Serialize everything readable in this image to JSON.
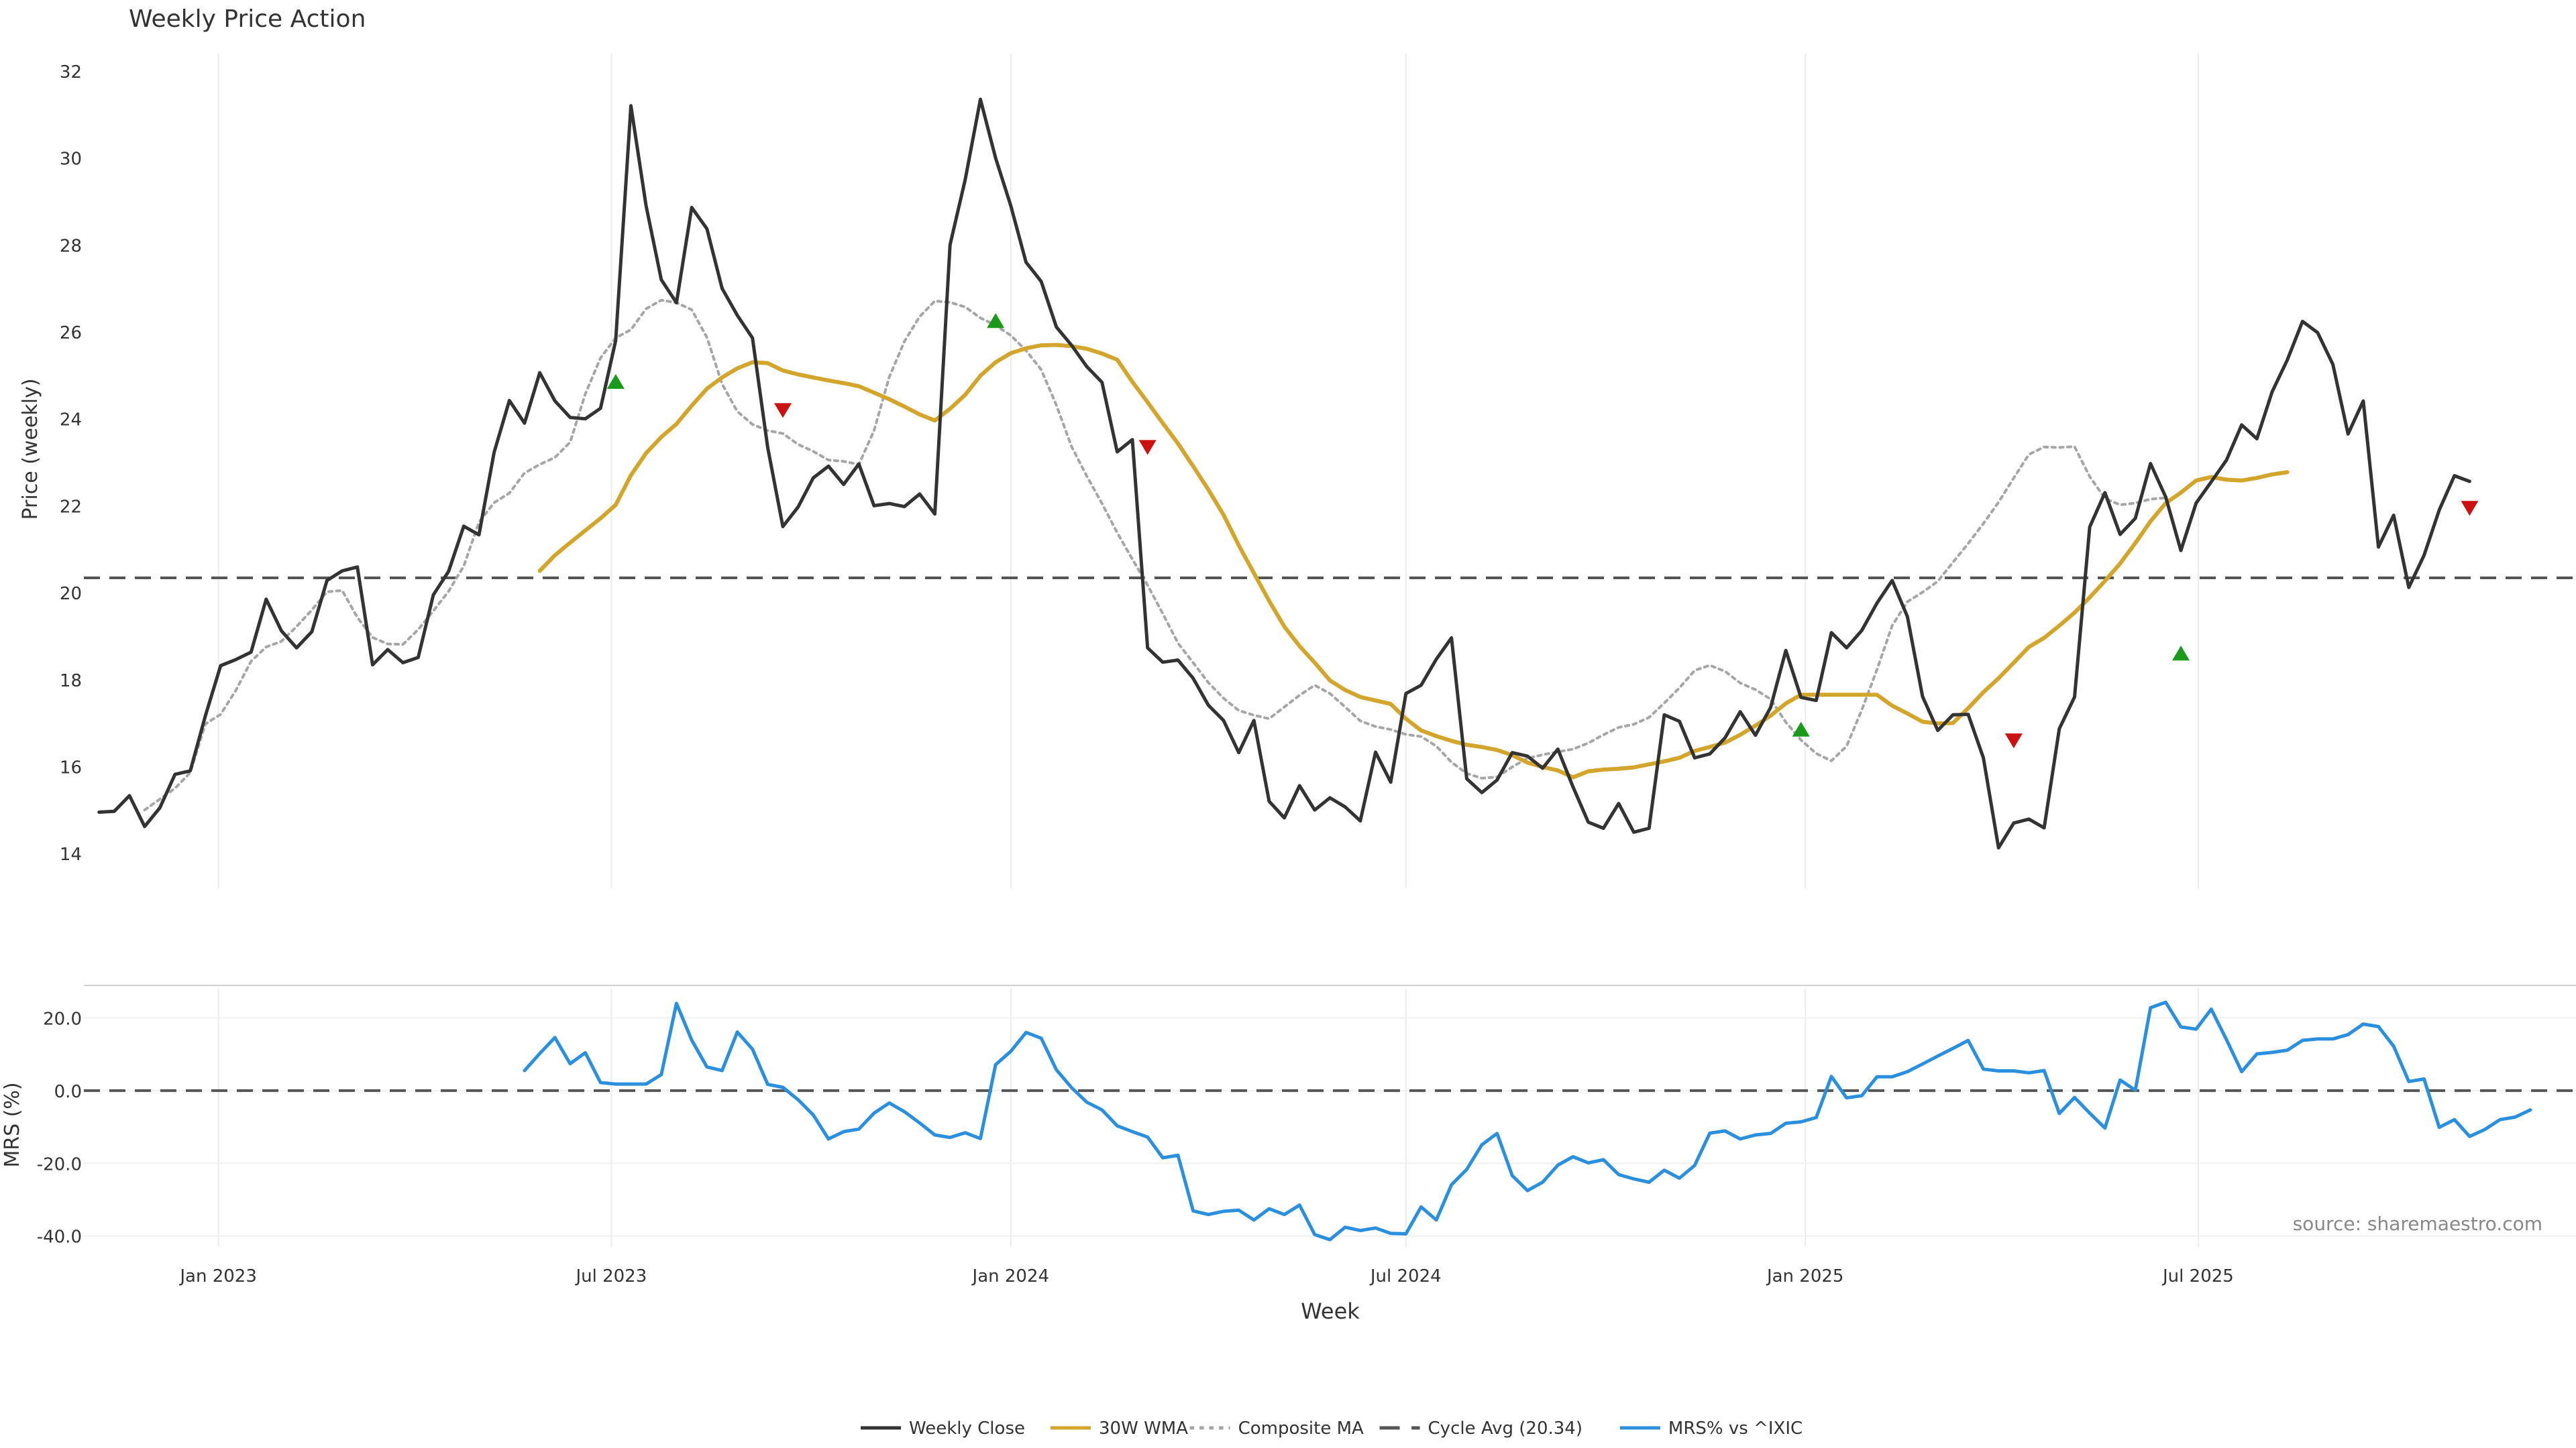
{
  "chart_data": [
    {
      "type": "line",
      "title": "Weekly Price Action",
      "ylabel": "Price (weekly)",
      "ylim": [
        13.2,
        32.4
      ],
      "yticks": [
        14,
        16,
        18,
        20,
        22,
        24,
        26,
        28,
        30,
        32
      ],
      "xlim": [
        "2022-10-31",
        "2025-12-22"
      ],
      "grid": "vertical",
      "series": [
        {
          "name": "Weekly Close",
          "color": "#333333",
          "style": "solid",
          "x_start": "2022-11-07",
          "values": [
            14.95,
            14.97,
            15.33,
            14.62,
            15.05,
            15.82,
            15.9,
            17.17,
            18.32,
            18.46,
            18.63,
            19.85,
            19.12,
            18.73,
            19.1,
            20.28,
            20.5,
            20.59,
            18.34,
            18.69,
            18.39,
            18.51,
            19.95,
            20.49,
            21.53,
            21.33,
            23.23,
            24.42,
            23.9,
            25.06,
            24.41,
            24.03,
            24.0,
            24.24,
            25.8,
            31.2,
            28.9,
            27.2,
            26.67,
            28.86,
            28.37,
            27.0,
            26.38,
            25.86,
            23.34,
            21.52,
            21.97,
            22.64,
            22.91,
            22.49,
            22.96,
            22.0,
            22.05,
            21.98,
            22.27,
            21.81,
            28.0,
            29.5,
            31.35,
            30.0,
            28.9,
            27.6,
            27.16,
            26.11,
            25.69,
            25.2,
            24.84,
            23.24,
            23.52,
            18.73,
            18.4,
            18.45,
            18.03,
            17.41,
            17.06,
            16.32,
            17.06,
            15.2,
            14.82,
            15.56,
            15.0,
            15.28,
            15.07,
            14.75,
            16.33,
            15.64,
            17.68,
            17.87,
            18.47,
            18.96,
            15.72,
            15.4,
            15.69,
            16.32,
            16.24,
            15.96,
            16.4,
            15.53,
            14.72,
            14.58,
            15.15,
            14.49,
            14.58,
            17.19,
            17.04,
            16.2,
            16.29,
            16.66,
            17.26,
            16.72,
            17.36,
            18.67,
            17.59,
            17.52,
            19.08,
            18.73,
            19.13,
            19.76,
            20.28,
            19.45,
            17.61,
            16.83,
            17.19,
            17.2,
            16.2,
            14.13,
            14.7,
            14.79,
            14.59,
            16.87,
            17.6,
            21.51,
            22.3,
            21.34,
            21.71,
            22.97,
            22.2,
            20.97,
            22.06,
            22.55,
            23.05,
            23.86,
            23.54,
            24.62,
            25.35,
            26.24,
            25.98,
            25.25,
            23.65,
            24.41,
            21.05,
            21.78,
            20.12,
            20.86,
            21.9,
            22.69,
            22.56
          ]
        },
        {
          "name": "30W WMA",
          "color": "#d4a52b",
          "style": "solid",
          "x_start": "2023-05-29",
          "values": [
            20.5,
            20.86,
            21.15,
            21.43,
            21.71,
            22.02,
            22.7,
            23.21,
            23.58,
            23.88,
            24.3,
            24.69,
            24.95,
            25.16,
            25.3,
            25.28,
            25.11,
            25.02,
            24.95,
            24.88,
            24.82,
            24.75,
            24.6,
            24.45,
            24.28,
            24.1,
            23.96,
            24.23,
            24.55,
            24.99,
            25.3,
            25.51,
            25.62,
            25.69,
            25.7,
            25.67,
            25.61,
            25.5,
            25.36,
            24.85,
            24.38,
            23.9,
            23.43,
            22.91,
            22.37,
            21.79,
            21.09,
            20.45,
            19.81,
            19.22,
            18.77,
            18.39,
            17.98,
            17.76,
            17.6,
            17.52,
            17.44,
            17.1,
            16.83,
            16.7,
            16.59,
            16.5,
            16.45,
            16.38,
            16.26,
            16.09,
            15.99,
            15.91,
            15.75,
            15.89,
            15.93,
            15.95,
            15.98,
            16.05,
            16.12,
            16.2,
            16.36,
            16.45,
            16.55,
            16.73,
            16.94,
            17.17,
            17.45,
            17.65,
            17.65,
            17.65,
            17.65,
            17.65,
            17.65,
            17.4,
            17.22,
            17.03,
            16.99,
            17.0,
            17.34,
            17.71,
            18.03,
            18.39,
            18.75,
            18.96,
            19.24,
            19.54,
            19.89,
            20.27,
            20.67,
            21.14,
            21.64,
            22.06,
            22.3,
            22.58,
            22.66,
            22.6,
            22.58,
            22.64,
            22.72,
            22.77
          ]
        },
        {
          "name": "Composite MA",
          "color": "#a6a6a6",
          "style": "dotted",
          "x_start": "2022-11-28",
          "values": [
            15.0,
            15.25,
            15.5,
            15.86,
            16.98,
            17.2,
            17.75,
            18.42,
            18.75,
            18.88,
            19.22,
            19.6,
            20.02,
            20.05,
            19.43,
            18.97,
            18.82,
            18.81,
            19.15,
            19.58,
            20.03,
            20.61,
            21.62,
            22.07,
            22.29,
            22.75,
            22.95,
            23.11,
            23.46,
            24.57,
            25.4,
            25.86,
            26.05,
            26.53,
            26.73,
            26.67,
            26.51,
            25.87,
            24.8,
            24.17,
            23.87,
            23.73,
            23.66,
            23.41,
            23.25,
            23.05,
            23.02,
            22.95,
            23.73,
            24.96,
            25.78,
            26.35,
            26.71,
            26.68,
            26.57,
            26.32,
            26.15,
            25.92,
            25.57,
            25.13,
            24.31,
            23.36,
            22.68,
            22.05,
            21.38,
            20.77,
            20.17,
            19.52,
            18.84,
            18.39,
            17.93,
            17.57,
            17.29,
            17.18,
            17.1,
            17.37,
            17.64,
            17.87,
            17.68,
            17.37,
            17.05,
            16.92,
            16.85,
            16.74,
            16.69,
            16.47,
            16.1,
            15.84,
            15.73,
            15.76,
            15.99,
            16.19,
            16.27,
            16.34,
            16.4,
            16.54,
            16.73,
            16.9,
            16.97,
            17.13,
            17.46,
            17.81,
            18.21,
            18.33,
            18.19,
            17.92,
            17.77,
            17.55,
            17.02,
            16.61,
            16.3,
            16.13,
            16.47,
            17.3,
            18.23,
            19.24,
            19.79,
            20.01,
            20.26,
            20.7,
            21.13,
            21.59,
            22.08,
            22.64,
            23.18,
            23.35,
            23.34,
            23.36,
            22.67,
            22.17,
            22.02,
            22.06,
            22.15,
            22.18
          ]
        },
        {
          "name": "Cycle Avg (20.34)",
          "color": "#555555",
          "style": "dashed",
          "value": 20.34
        }
      ],
      "markers": [
        {
          "date": "2023-07-03",
          "value": 24.85,
          "kind": "up"
        },
        {
          "date": "2023-09-18",
          "value": 24.2,
          "kind": "down"
        },
        {
          "date": "2023-12-25",
          "value": 26.25,
          "kind": "up"
        },
        {
          "date": "2024-03-04",
          "value": 23.35,
          "kind": "down"
        },
        {
          "date": "2024-12-30",
          "value": 16.85,
          "kind": "up"
        },
        {
          "date": "2025-04-07",
          "value": 16.6,
          "kind": "down"
        },
        {
          "date": "2025-06-23",
          "value": 18.6,
          "kind": "up"
        },
        {
          "date": "2025-11-03",
          "value": 21.95,
          "kind": "down"
        }
      ],
      "colors": {
        "up": "#1a9a1a",
        "down": "#cc1111"
      }
    },
    {
      "type": "line",
      "ylabel": "MRS (%)",
      "xlabel": "Week",
      "ylim": [
        -43,
        28
      ],
      "yticks": [
        "20.0",
        "0.0",
        "-20.0",
        "-40.0"
      ],
      "xticks": [
        {
          "date": "2023-01-01",
          "label": "Jan 2023"
        },
        {
          "date": "2023-07-01",
          "label": "Jul 2023"
        },
        {
          "date": "2024-01-01",
          "label": "Jan 2024"
        },
        {
          "date": "2024-07-01",
          "label": "Jul 2024"
        },
        {
          "date": "2025-01-01",
          "label": "Jan 2025"
        },
        {
          "date": "2025-07-01",
          "label": "Jul 2025"
        }
      ],
      "series": [
        {
          "name": "MRS% vs ^IXIC",
          "color": "#2b8fe0",
          "style": "solid",
          "x_start": "2023-05-22",
          "values": [
            5.5,
            10.2,
            14.6,
            7.4,
            10.4,
            2.2,
            1.8,
            1.8,
            1.8,
            4.4,
            24.0,
            13.9,
            6.5,
            5.5,
            16.1,
            11.4,
            1.7,
            0.9,
            -2.5,
            -6.7,
            -13.3,
            -11.3,
            -10.6,
            -6.2,
            -3.4,
            -5.8,
            -8.9,
            -12.2,
            -12.9,
            -11.6,
            -13.2,
            7.1,
            10.8,
            16.0,
            14.4,
            5.7,
            0.8,
            -3.2,
            -5.3,
            -9.7,
            -11.3,
            -12.8,
            -18.5,
            -17.8,
            -33.1,
            -34.1,
            -33.2,
            -32.9,
            -35.6,
            -32.5,
            -34.1,
            -31.5,
            -39.6,
            -41.0,
            -37.6,
            -38.5,
            -37.8,
            -39.3,
            -39.4,
            -32.0,
            -35.6,
            -25.9,
            -21.7,
            -14.9,
            -11.8,
            -23.4,
            -27.5,
            -25.2,
            -20.5,
            -18.2,
            -19.9,
            -19.0,
            -23.1,
            -24.3,
            -25.2,
            -21.9,
            -24.1,
            -20.6,
            -11.7,
            -11.1,
            -13.3,
            -12.2,
            -11.8,
            -9.0,
            -8.6,
            -7.4,
            3.9,
            -2.0,
            -1.4,
            3.8,
            3.8,
            5.2,
            7.3,
            9.5,
            11.6,
            13.8,
            5.9,
            5.4,
            5.4,
            4.9,
            5.5,
            -6.3,
            -1.9,
            -6.2,
            -10.3,
            2.9,
            0.1,
            22.8,
            24.3,
            17.5,
            16.9,
            22.4,
            14.0,
            5.2,
            10.1,
            10.5,
            11.1,
            13.8,
            14.2,
            14.2,
            15.4,
            18.3,
            17.6,
            12.2,
            2.5,
            3.2,
            -10.1,
            -8.0,
            -12.6,
            -10.7,
            -8.0,
            -7.3,
            -5.3
          ]
        }
      ],
      "reference_line": {
        "value": 0,
        "style": "dashed",
        "color": "#555555"
      },
      "annotation": "source: sharemaestro.com"
    }
  ],
  "legend": {
    "placement": "bottom-center",
    "items": [
      {
        "label": "Weekly Close",
        "color": "#333333",
        "style": "solid"
      },
      {
        "label": "30W WMA",
        "color": "#d4a52b",
        "style": "solid"
      },
      {
        "label": "Composite MA",
        "color": "#a6a6a6",
        "style": "dotted"
      },
      {
        "label": "Cycle Avg (20.34)",
        "color": "#555555",
        "style": "dashed"
      },
      {
        "label": "MRS% vs ^IXIC",
        "color": "#2b8fe0",
        "style": "solid"
      }
    ]
  }
}
